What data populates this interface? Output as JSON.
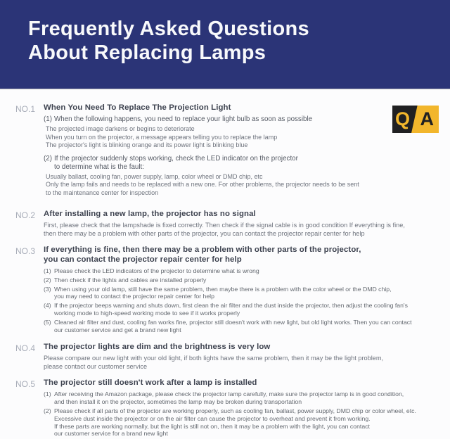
{
  "colors": {
    "header_bg": "#2B3477",
    "content_bg": "#FCFCFD",
    "logo_yellow": "#F2B62C",
    "logo_black": "#202022",
    "heading_text": "#3E4350",
    "body_text": "#6E737D",
    "number_label": "#A7ACB8"
  },
  "header": {
    "title": "Frequently Asked Questions\nAbout Replacing Lamps"
  },
  "logo": {
    "q": "Q",
    "a": "A"
  },
  "sections": [
    {
      "no": "NO.1",
      "heading": "When You Need To Replace The Projection Light",
      "items": [
        {
          "marker": "(1)",
          "text": "When the following happens, you need to replace your light bulb as soon as possible",
          "details": "The projected image darkens or begins to deteriorate\nWhen you turn on the projector, a message appears telling you to replace the lamp\nThe projector's light is blinking orange and its power light is blinking blue"
        },
        {
          "marker": "(2)",
          "text": "If the projector suddenly stops working, check the LED indicator on the projector\nto determine what is the fault:",
          "details": "Usually ballast, cooling fan, power supply, lamp, color wheel or DMD chip, etc\nOnly the lamp fails and needs to be replaced with a new one. For other problems, the projector needs to be sent\nto the maintenance center for inspection"
        }
      ]
    },
    {
      "no": "NO.2",
      "heading": "After installing a new lamp, the projector has no signal",
      "para": "First, please check that the lampshade is fixed correctly. Then check if the signal cable is in good condition If everything is fine,\nthen there may be a problem with other parts of the projector, you can contact the projector repair center for help"
    },
    {
      "no": "NO.3",
      "heading": "If everything is fine, then there may be a problem with other parts of the projector,\nyou can contact the projector repair center for help",
      "items": [
        {
          "marker": "(1)",
          "text": "Please check the LED indicators of the projector to determine what is wrong"
        },
        {
          "marker": "(2)",
          "text": "Then check if the lights and cables are installed properly"
        },
        {
          "marker": "(3)",
          "text": "When using your old lamp, still have the same problem, then maybe there is a problem with the color wheel or the DMD chip,\nyou may need to contact the projector repair center for help"
        },
        {
          "marker": "(4)",
          "text": "If the projector beeps warning and shuts down, first clean the air filter and the dust inside the projector, then adjust the cooling fan's\nworking mode to high-speed working mode to see if it works properly"
        },
        {
          "marker": "(5)",
          "text": "Cleaned air filter and dust, cooling fan works fine, projector still doesn't work with new light, but old light works. Then you can contact\nour customer service and get a brand new light"
        }
      ]
    },
    {
      "no": "NO.4",
      "heading": "The projector lights are dim and the brightness is very low",
      "para": "Please compare our new light with your old light, if both lights have the same problem, then it may be the light problem,\nplease contact our customer service"
    },
    {
      "no": "NO.5",
      "heading": "The projector still doesn't work after a lamp is installed",
      "items": [
        {
          "marker": "(1)",
          "text": "After receiving the Amazon package, please check the projector lamp carefully, make sure the projector lamp is in good condition,\nand then install it on the projector, sometimes the lamp may be broken during transportation"
        },
        {
          "marker": "(2)",
          "text": "Please check if all parts of the projector are working properly, such as cooling fan, ballast, power supply, DMD chip or color wheel, etc.\nExcessive dust inside the projector or on the air filter can cause the projector to overheat and prevent it from working.\nIf these parts are working normally, but the light is still not on, then it may be a problem with the light, you can contact\nour customer service for a brand new light"
        }
      ]
    }
  ]
}
